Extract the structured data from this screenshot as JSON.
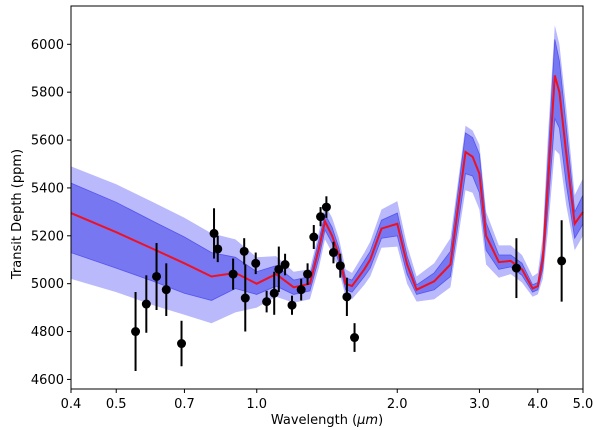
{
  "chart_data": {
    "type": "line",
    "title": "",
    "xlabel_prefix": "Wavelength (",
    "xlabel_unit": "μm",
    "xlabel_suffix": ")",
    "ylabel": "Transit Depth (ppm)",
    "x_scale": "log",
    "xlim": [
      0.4,
      5.0
    ],
    "ylim": [
      4560,
      6160
    ],
    "x_ticks": [
      {
        "value": 0.4,
        "label": "0.4"
      },
      {
        "value": 0.5,
        "label": "0.5"
      },
      {
        "value": 0.7,
        "label": "0.7"
      },
      {
        "value": 1.0,
        "label": "1.0"
      },
      {
        "value": 2.0,
        "label": "2.0"
      },
      {
        "value": 3.0,
        "label": "3.0"
      },
      {
        "value": 4.0,
        "label": "4.0"
      },
      {
        "value": 5.0,
        "label": "5.0"
      }
    ],
    "y_ticks": [
      {
        "value": 4600,
        "label": "4600"
      },
      {
        "value": 4800,
        "label": "4800"
      },
      {
        "value": 5000,
        "label": "5000"
      },
      {
        "value": 5200,
        "label": "5200"
      },
      {
        "value": 5400,
        "label": "5400"
      },
      {
        "value": 5600,
        "label": "5600"
      },
      {
        "value": 5800,
        "label": "5800"
      },
      {
        "value": 6000,
        "label": "6000"
      }
    ],
    "grid": false,
    "colors": {
      "outer_band": "#b9b9fb",
      "inner_band": "#7777f2",
      "inner_band_edge": "#5555ee",
      "model_line": "#ee1122",
      "points": "#000000"
    },
    "model": {
      "x": [
        0.4,
        0.5,
        0.6,
        0.7,
        0.8,
        0.9,
        1.0,
        1.1,
        1.2,
        1.3,
        1.36,
        1.4,
        1.45,
        1.5,
        1.55,
        1.6,
        1.7,
        1.75,
        1.85,
        2.0,
        2.1,
        2.2,
        2.4,
        2.6,
        2.8,
        2.9,
        3.0,
        3.1,
        3.3,
        3.5,
        3.7,
        3.9,
        4.0,
        4.1,
        4.2,
        4.35,
        4.45,
        4.6,
        4.8,
        5.0
      ],
      "mean": [
        5295,
        5215,
        5145,
        5085,
        5030,
        5045,
        5000,
        5040,
        4985,
        5000,
        5150,
        5260,
        5200,
        5120,
        5000,
        4990,
        5060,
        5100,
        5230,
        5250,
        5080,
        4975,
        5010,
        5080,
        5550,
        5530,
        5460,
        5200,
        5090,
        5095,
        5060,
        4980,
        4990,
        5100,
        5400,
        5870,
        5800,
        5550,
        5250,
        5300
      ],
      "inner_low": [
        5130,
        5065,
        5010,
        4960,
        4930,
        4980,
        4955,
        4990,
        4955,
        4970,
        5110,
        5225,
        5170,
        5090,
        4975,
        4965,
        5030,
        5065,
        5190,
        5200,
        5040,
        4955,
        4975,
        5030,
        5460,
        5450,
        5380,
        5140,
        5060,
        5070,
        5035,
        4965,
        4975,
        5060,
        5300,
        5690,
        5650,
        5420,
        5190,
        5250
      ],
      "inner_high": [
        5420,
        5340,
        5260,
        5195,
        5130,
        5110,
        5050,
        5075,
        5015,
        5030,
        5185,
        5290,
        5235,
        5150,
        5025,
        5015,
        5095,
        5135,
        5265,
        5295,
        5115,
        4995,
        5045,
        5135,
        5630,
        5610,
        5540,
        5255,
        5120,
        5120,
        5085,
        4995,
        5005,
        5140,
        5500,
        6020,
        5930,
        5660,
        5300,
        5370
      ],
      "outer_low": [
        5020,
        4965,
        4910,
        4870,
        4835,
        4880,
        4900,
        4945,
        4920,
        4935,
        5070,
        5185,
        5130,
        5055,
        4945,
        4935,
        4995,
        5030,
        5150,
        5155,
        5000,
        4925,
        4935,
        4985,
        5390,
        5380,
        5310,
        5080,
        5025,
        5040,
        5005,
        4945,
        4955,
        5020,
        5210,
        5560,
        5540,
        5330,
        5140,
        5200
      ],
      "outer_high": [
        5490,
        5415,
        5340,
        5275,
        5210,
        5185,
        5110,
        5115,
        5050,
        5060,
        5220,
        5330,
        5275,
        5190,
        5060,
        5045,
        5130,
        5175,
        5310,
        5345,
        5160,
        5030,
        5085,
        5190,
        5660,
        5640,
        5580,
        5300,
        5160,
        5160,
        5120,
        5030,
        5045,
        5200,
        5600,
        6080,
        6000,
        5740,
        5370,
        5440
      ]
    },
    "observations": [
      {
        "x": 0.55,
        "y": 4800,
        "err": 165
      },
      {
        "x": 0.58,
        "y": 4915,
        "err": 120
      },
      {
        "x": 0.61,
        "y": 5030,
        "err": 140
      },
      {
        "x": 0.64,
        "y": 4975,
        "err": 110
      },
      {
        "x": 0.69,
        "y": 4750,
        "err": 95
      },
      {
        "x": 0.81,
        "y": 5210,
        "err": 105
      },
      {
        "x": 0.825,
        "y": 5145,
        "err": 55
      },
      {
        "x": 0.89,
        "y": 5040,
        "err": 65
      },
      {
        "x": 0.94,
        "y": 5135,
        "err": 55
      },
      {
        "x": 0.945,
        "y": 4940,
        "err": 140
      },
      {
        "x": 0.995,
        "y": 5085,
        "err": 45
      },
      {
        "x": 1.05,
        "y": 4925,
        "err": 45
      },
      {
        "x": 1.09,
        "y": 4960,
        "err": 90
      },
      {
        "x": 1.115,
        "y": 5060,
        "err": 95
      },
      {
        "x": 1.15,
        "y": 5080,
        "err": 45
      },
      {
        "x": 1.19,
        "y": 4910,
        "err": 40
      },
      {
        "x": 1.245,
        "y": 4975,
        "err": 45
      },
      {
        "x": 1.285,
        "y": 5040,
        "err": 45
      },
      {
        "x": 1.325,
        "y": 5195,
        "err": 50
      },
      {
        "x": 1.37,
        "y": 5280,
        "err": 40
      },
      {
        "x": 1.41,
        "y": 5320,
        "err": 45
      },
      {
        "x": 1.46,
        "y": 5130,
        "err": 45
      },
      {
        "x": 1.51,
        "y": 5075,
        "err": 50
      },
      {
        "x": 1.56,
        "y": 4945,
        "err": 80
      },
      {
        "x": 1.62,
        "y": 4775,
        "err": 60
      },
      {
        "x": 3.6,
        "y": 5065,
        "err": 125
      },
      {
        "x": 4.5,
        "y": 5095,
        "err": 170
      }
    ]
  }
}
